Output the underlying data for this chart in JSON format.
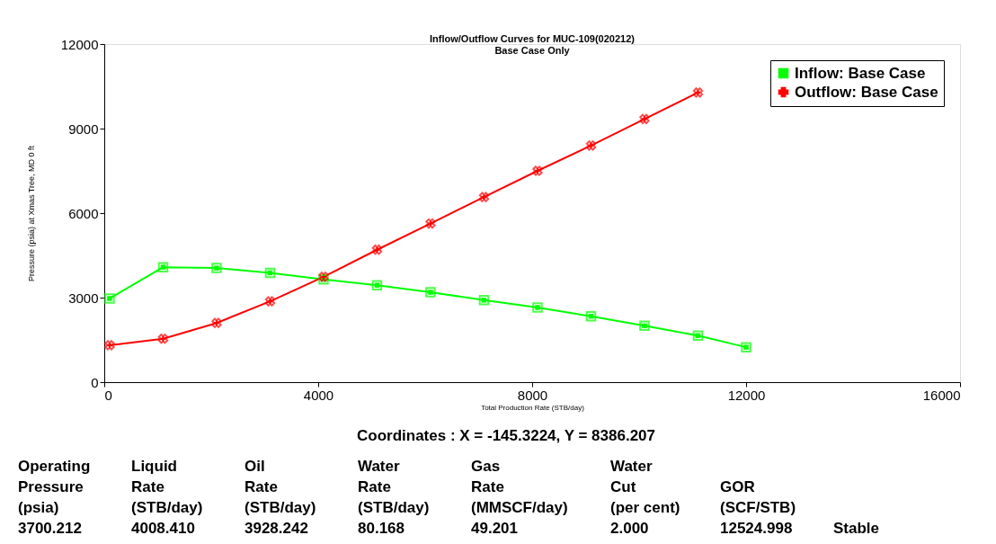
{
  "chart_data": {
    "type": "line",
    "title": "Inflow/Outflow Curves for MUC-109(020212)",
    "subtitle": "Base Case Only",
    "xlabel": "Total Production Rate (STB/day)",
    "ylabel": "Pressure (psia) at Xmas Tree, MD 0 ft",
    "x": [
      100,
      1100,
      2100,
      3100,
      4100,
      5100,
      6100,
      7100,
      8100,
      9100,
      10100,
      11100,
      12000
    ],
    "series": [
      {
        "name": "Inflow: Base Case",
        "color": "#00ff00",
        "marker": "square",
        "values": [
          2970,
          4080,
          4050,
          3880,
          3650,
          3440,
          3190,
          2910,
          2650,
          2340,
          2000,
          1650,
          1240
        ]
      },
      {
        "name": "Outflow: Base Case",
        "color": "#ff0000",
        "marker": "cross",
        "values": [
          1310,
          1540,
          2100,
          2870,
          3740,
          4700,
          5630,
          6570,
          7500,
          8400,
          9340,
          10280,
          null
        ]
      }
    ],
    "xlim": [
      0,
      16000
    ],
    "xticks": [
      0,
      4000,
      8000,
      12000,
      16000
    ],
    "ylim": [
      0,
      12000
    ],
    "yticks": [
      0,
      3000,
      6000,
      9000,
      12000
    ],
    "grid": false,
    "legend": "top right",
    "annotations": [
      "Coordinates :  X = -145.3224,  Y = 8386.207",
      "Operating\nPressure\n(psia)\n3700.212",
      "Liquid\nRate\n(STB/day)\n4008.410",
      "Oil\nRate\n(STB/day)\n3928.242",
      "Water\nRate\n(STB/day)\n80.168",
      "Gas\nRate\n(MMSCF/day)\n49.201",
      "Water\nCut\n(per cent)\n2.000",
      "GOR\n(SCF/STB)\n12524.998",
      "Stable"
    ]
  }
}
